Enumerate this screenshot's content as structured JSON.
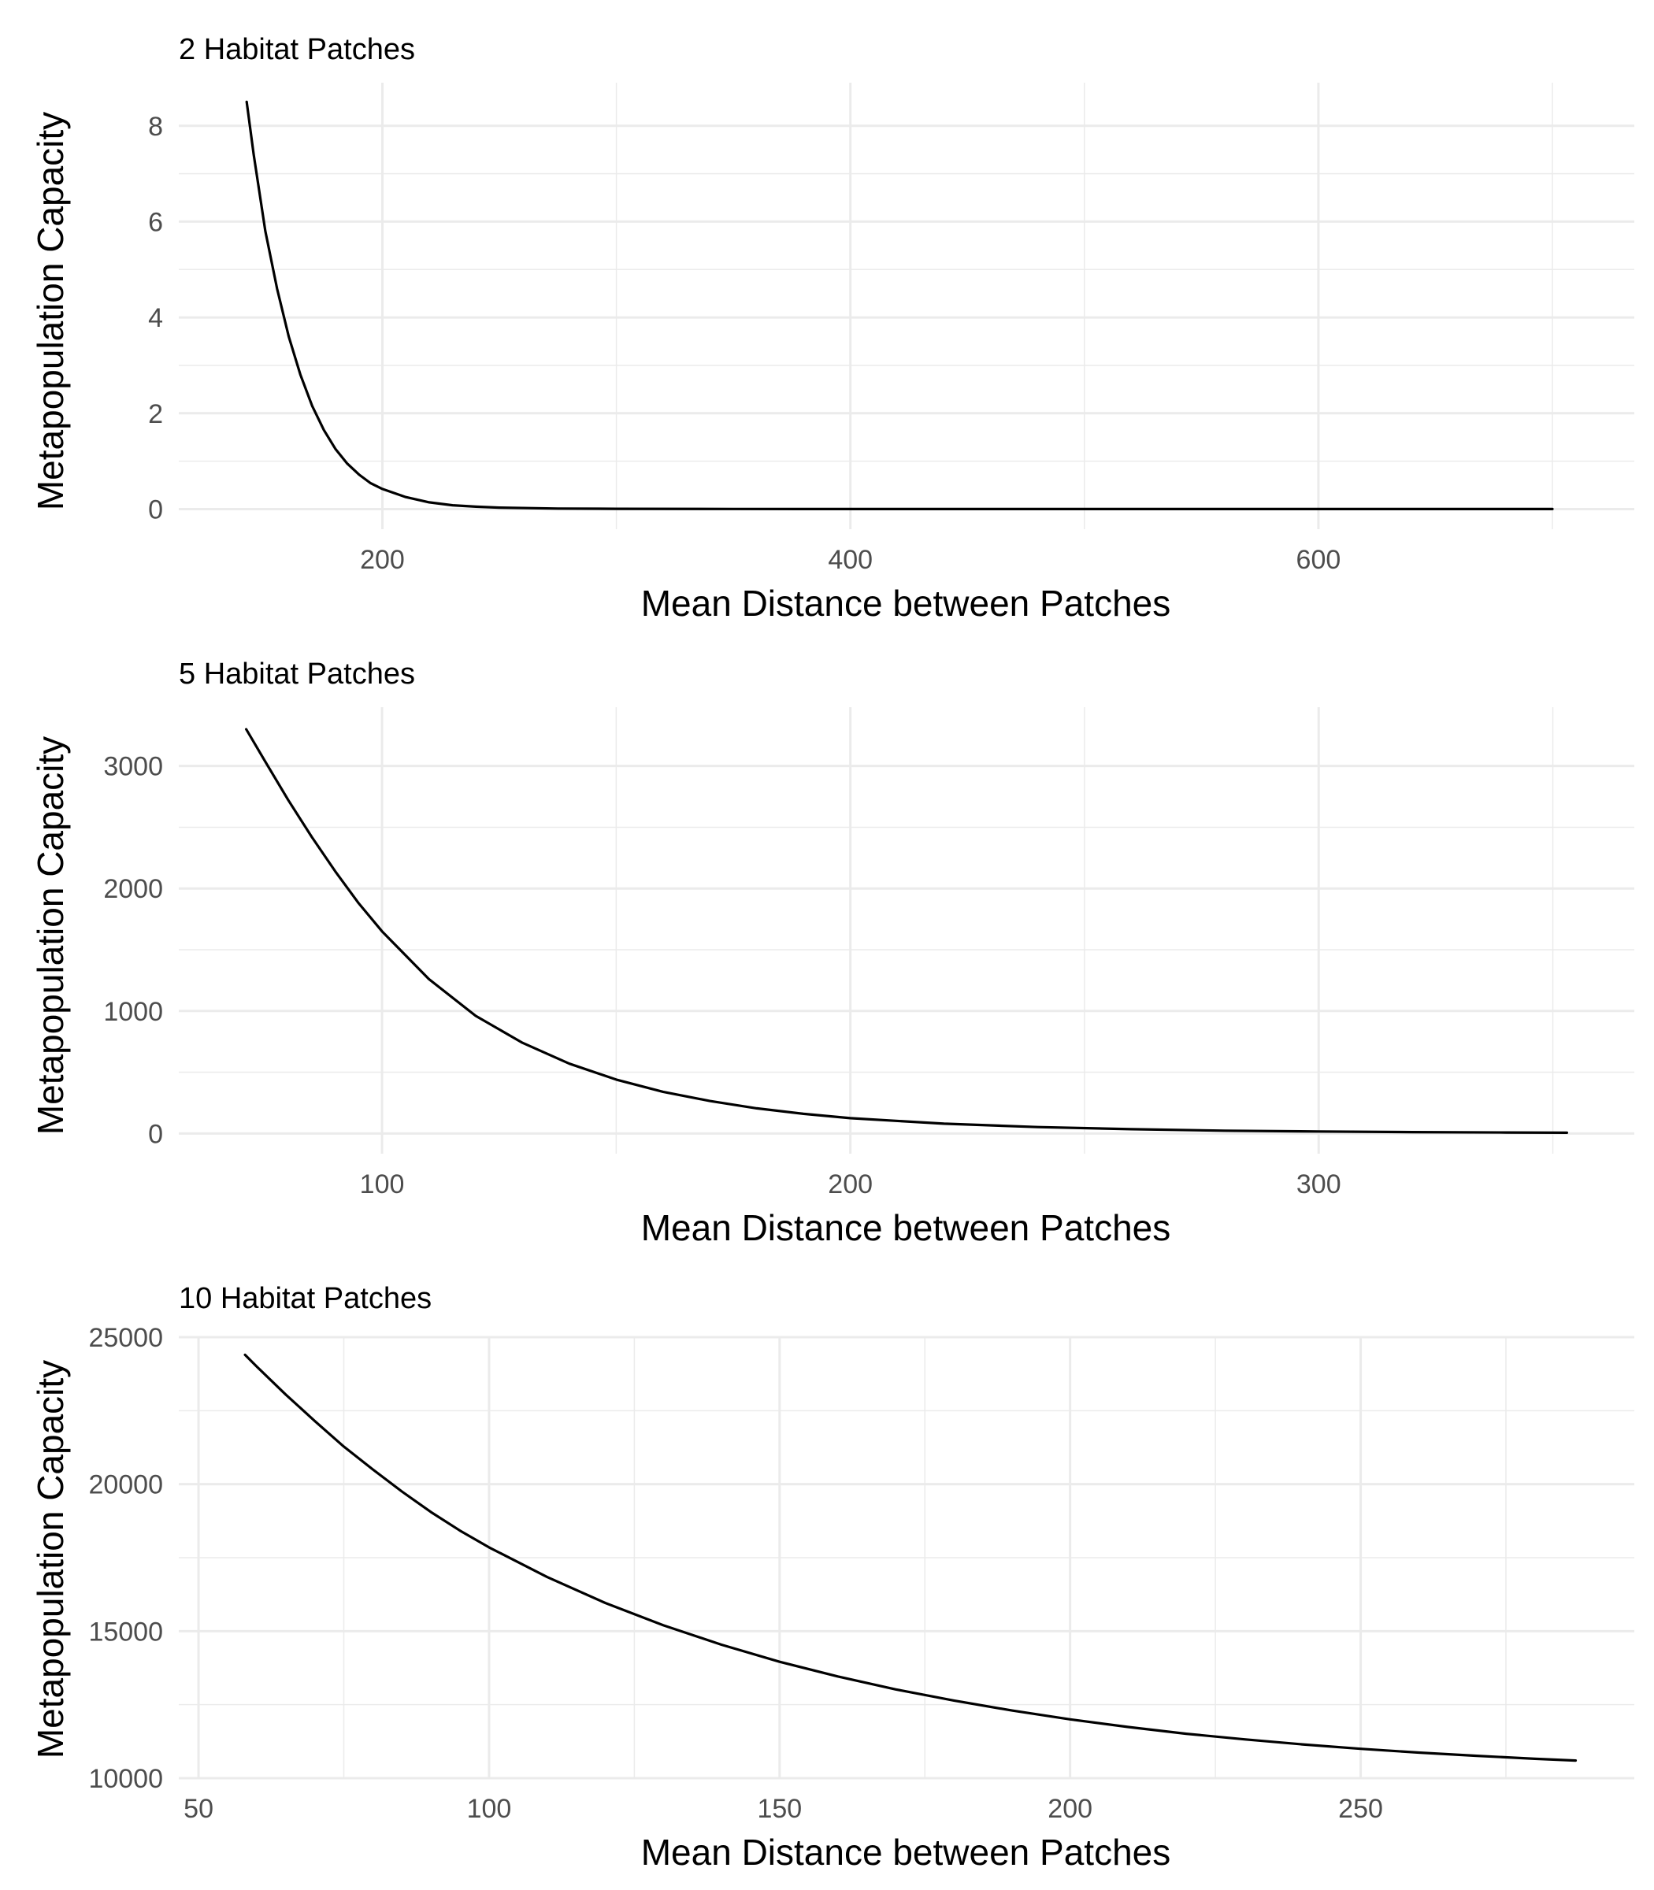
{
  "chart_data": [
    {
      "type": "line",
      "title": "2 Habitat Patches",
      "xlabel": "Mean Distance between Patches",
      "ylabel": "Metapopulation Capacity",
      "xlim": [
        113,
        735
      ],
      "ylim": [
        -0.42,
        8.9
      ],
      "xticks": [
        200,
        400,
        600
      ],
      "xticks_minor": [
        300,
        500,
        700
      ],
      "yticks": [
        0,
        2,
        4,
        6,
        8
      ],
      "yticks_minor": [
        1,
        3,
        5,
        7
      ],
      "grid": true,
      "series": [
        {
          "x": [
            142,
            145,
            150,
            155,
            160,
            165,
            170,
            175,
            180,
            185,
            190,
            195,
            200,
            210,
            220,
            230,
            240,
            250,
            275,
            300,
            350,
            400,
            500,
            600,
            700
          ],
          "values": [
            8.5,
            7.4,
            5.8,
            4.6,
            3.6,
            2.8,
            2.15,
            1.65,
            1.25,
            0.95,
            0.72,
            0.54,
            0.42,
            0.25,
            0.14,
            0.08,
            0.05,
            0.03,
            0.01,
            0.005,
            0.002,
            0.001,
            0.0,
            0.0,
            0.0
          ]
        }
      ]
    },
    {
      "type": "line",
      "title": "5 Habitat Patches",
      "xlabel": "Mean Distance between Patches",
      "ylabel": "Metapopulation Capacity",
      "xlim": [
        56.6,
        367.4
      ],
      "ylim": [
        -165,
        3480
      ],
      "xticks": [
        100,
        200,
        300
      ],
      "xticks_minor": [
        150,
        250,
        350
      ],
      "yticks": [
        0,
        1000,
        2000,
        3000
      ],
      "yticks_minor": [
        500,
        1500,
        2500
      ],
      "grid": true,
      "series": [
        {
          "x": [
            71,
            75,
            80,
            85,
            90,
            95,
            100,
            110,
            120,
            130,
            140,
            150,
            160,
            170,
            180,
            190,
            200,
            220,
            240,
            260,
            280,
            300,
            320,
            340,
            353
          ],
          "values": [
            3300,
            3040,
            2720,
            2420,
            2140,
            1880,
            1650,
            1260,
            960,
            740,
            570,
            440,
            340,
            265,
            205,
            160,
            125,
            80,
            52,
            35,
            23,
            16,
            11,
            8,
            6
          ]
        }
      ]
    },
    {
      "type": "line",
      "title": "10 Habitat Patches",
      "xlabel": "Mean Distance between Patches",
      "ylabel": "Metapopulation Capacity",
      "xlim": [
        46.6,
        297.1
      ],
      "ylim": [
        10000,
        25000
      ],
      "xticks": [
        50,
        100,
        150,
        200,
        250
      ],
      "xticks_minor": [
        75,
        125,
        175,
        225,
        275
      ],
      "yticks": [
        10000,
        15000,
        20000,
        25000
      ],
      "yticks_minor": [
        12500,
        17500,
        22500
      ],
      "grid": true,
      "series": [
        {
          "x": [
            58,
            60,
            65,
            70,
            75,
            80,
            85,
            90,
            95,
            100,
            110,
            120,
            130,
            140,
            150,
            160,
            170,
            180,
            190,
            200,
            210,
            220,
            230,
            240,
            250,
            260,
            270,
            280,
            287
          ],
          "values": [
            24400,
            24000,
            23050,
            22150,
            21280,
            20500,
            19750,
            19050,
            18420,
            17850,
            16840,
            15960,
            15200,
            14540,
            13960,
            13460,
            13020,
            12640,
            12300,
            12000,
            11740,
            11510,
            11320,
            11150,
            11000,
            10870,
            10760,
            10660,
            10600
          ]
        }
      ]
    }
  ]
}
